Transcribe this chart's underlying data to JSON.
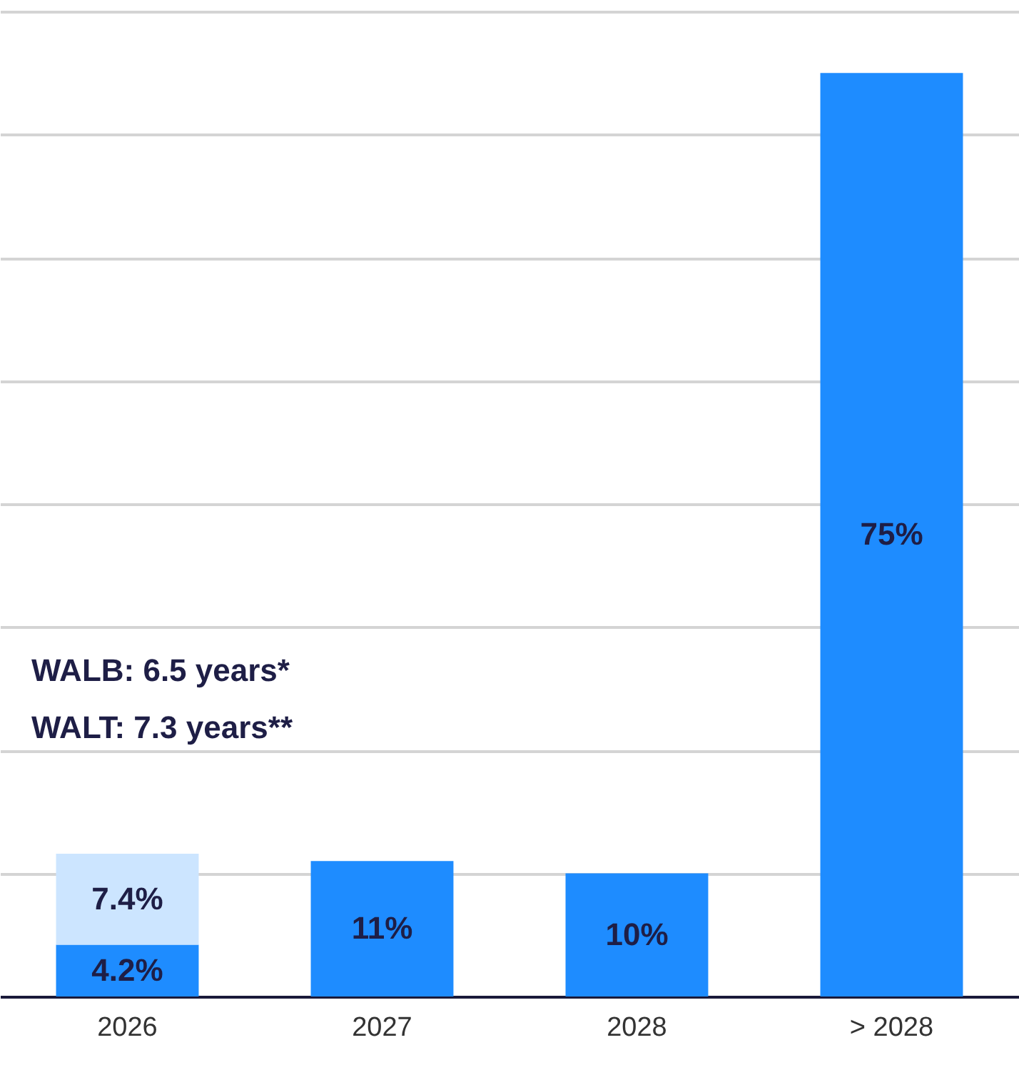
{
  "chart_data": {
    "type": "bar",
    "stacked": true,
    "categories": [
      "2026",
      "2027",
      "2028",
      "> 2028"
    ],
    "series": [
      {
        "color": "#1e8cff",
        "values": [
          4.2,
          11,
          10,
          75
        ],
        "value_labels": [
          "4.2%",
          "11%",
          "10%",
          "75%"
        ]
      },
      {
        "color": "#cce5ff",
        "values": [
          7.4,
          null,
          null,
          null
        ],
        "value_labels": [
          "7.4%",
          null,
          null,
          null
        ]
      }
    ],
    "ylim": [
      0,
      80
    ],
    "yticks": [
      {
        "value": 10,
        "label": null
      },
      {
        "value": 20,
        "label": null
      },
      {
        "value": 30,
        "label": null
      },
      {
        "value": 40,
        "label": null
      },
      {
        "value": 50,
        "label": null
      },
      {
        "value": 60,
        "label": null
      },
      {
        "value": 70,
        "label": null
      },
      {
        "value": 80,
        "label": null
      }
    ],
    "grid": "y",
    "tick_labels": "x",
    "annotations": [
      "WALB: 6.5 years*",
      "WALT: 7.3 years**"
    ]
  }
}
